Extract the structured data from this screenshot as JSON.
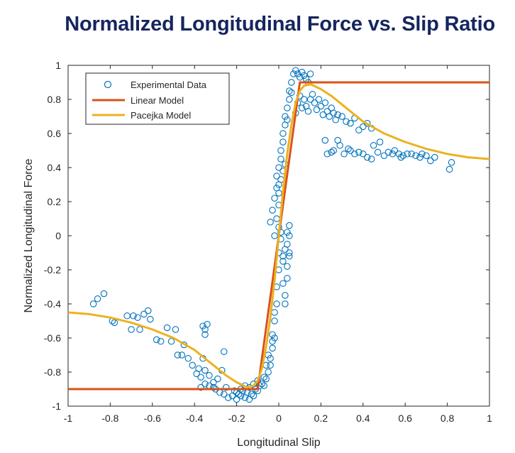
{
  "slide": {
    "title": "Normalized Longitudinal Force vs. Slip Ratio"
  },
  "chart_data": {
    "type": "scatter",
    "title": "",
    "xlabel": "Longitudinal Slip",
    "ylabel": "Normalized Longitudinal Force",
    "xlim": [
      -1,
      1
    ],
    "ylim": [
      -1,
      1
    ],
    "xticks": [
      -1,
      -0.8,
      -0.6,
      -0.4,
      -0.2,
      0,
      0.2,
      0.4,
      0.6,
      0.8,
      1
    ],
    "xtick_labels": [
      "-1",
      "-0.8",
      "-0.6",
      "-0.4",
      "-0.2",
      "0",
      "0.2",
      "0.4",
      "0.6",
      "0.8",
      "1"
    ],
    "yticks": [
      -1,
      -0.8,
      -0.6,
      -0.4,
      -0.2,
      0,
      0.2,
      0.4,
      0.6,
      0.8,
      1
    ],
    "ytick_labels": [
      "-1",
      "-0.8",
      "-0.6",
      "-0.4",
      "-0.2",
      "0",
      "0.2",
      "0.4",
      "0.6",
      "0.8",
      "1"
    ],
    "grid": false,
    "legend_position": "top-left",
    "series": [
      {
        "name": "Experimental Data",
        "kind": "scatter",
        "marker": "open-circle",
        "color": "#0072bd",
        "points": [
          [
            -0.88,
            -0.4
          ],
          [
            -0.86,
            -0.37
          ],
          [
            -0.83,
            -0.34
          ],
          [
            -0.79,
            -0.5
          ],
          [
            -0.78,
            -0.51
          ],
          [
            -0.72,
            -0.47
          ],
          [
            -0.7,
            -0.55
          ],
          [
            -0.69,
            -0.47
          ],
          [
            -0.67,
            -0.48
          ],
          [
            -0.66,
            -0.55
          ],
          [
            -0.64,
            -0.46
          ],
          [
            -0.62,
            -0.44
          ],
          [
            -0.61,
            -0.49
          ],
          [
            -0.58,
            -0.61
          ],
          [
            -0.56,
            -0.62
          ],
          [
            -0.53,
            -0.54
          ],
          [
            -0.51,
            -0.62
          ],
          [
            -0.49,
            -0.55
          ],
          [
            -0.48,
            -0.7
          ],
          [
            -0.46,
            -0.7
          ],
          [
            -0.45,
            -0.64
          ],
          [
            -0.43,
            -0.72
          ],
          [
            -0.41,
            -0.76
          ],
          [
            -0.39,
            -0.81
          ],
          [
            -0.37,
            -0.83
          ],
          [
            -0.36,
            -0.72
          ],
          [
            -0.38,
            -0.78
          ],
          [
            -0.35,
            -0.79
          ],
          [
            -0.33,
            -0.82
          ],
          [
            -0.31,
            -0.86
          ],
          [
            -0.33,
            -0.88
          ],
          [
            -0.35,
            -0.87
          ],
          [
            -0.37,
            -0.89
          ],
          [
            -0.36,
            -0.53
          ],
          [
            -0.35,
            -0.55
          ],
          [
            -0.34,
            -0.52
          ],
          [
            -0.35,
            -0.58
          ],
          [
            -0.26,
            -0.68
          ],
          [
            -0.27,
            -0.79
          ],
          [
            -0.29,
            -0.84
          ],
          [
            -0.3,
            -0.9
          ],
          [
            -0.31,
            -0.89
          ],
          [
            -0.28,
            -0.92
          ],
          [
            -0.26,
            -0.93
          ],
          [
            -0.25,
            -0.89
          ],
          [
            -0.24,
            -0.95
          ],
          [
            -0.22,
            -0.94
          ],
          [
            -0.21,
            -0.91
          ],
          [
            -0.2,
            -0.96
          ],
          [
            -0.19,
            -0.93
          ],
          [
            -0.18,
            -0.94
          ],
          [
            -0.17,
            -0.91
          ],
          [
            -0.16,
            -0.95
          ],
          [
            -0.15,
            -0.92
          ],
          [
            -0.14,
            -0.96
          ],
          [
            -0.13,
            -0.93
          ],
          [
            -0.12,
            -0.94
          ],
          [
            -0.11,
            -0.9
          ],
          [
            -0.1,
            -0.91
          ],
          [
            -0.09,
            -0.88
          ],
          [
            -0.08,
            -0.87
          ],
          [
            -0.07,
            -0.83
          ],
          [
            -0.06,
            -0.84
          ],
          [
            -0.05,
            -0.8
          ],
          [
            -0.05,
            -0.7
          ],
          [
            -0.04,
            -0.72
          ],
          [
            -0.03,
            -0.62
          ],
          [
            -0.03,
            -0.58
          ],
          [
            -0.02,
            -0.5
          ],
          [
            -0.02,
            -0.45
          ],
          [
            -0.01,
            -0.4
          ],
          [
            -0.01,
            -0.3
          ],
          [
            0.0,
            -0.2
          ],
          [
            0.0,
            -0.1
          ],
          [
            0.01,
            -0.02
          ],
          [
            0.02,
            -0.12
          ],
          [
            0.02,
            -0.28
          ],
          [
            0.03,
            -0.35
          ],
          [
            0.03,
            -0.4
          ],
          [
            0.04,
            -0.25
          ],
          [
            0.04,
            -0.05
          ],
          [
            0.05,
            0.0
          ],
          [
            0.05,
            0.06
          ],
          [
            0.05,
            -0.1
          ],
          [
            0.05,
            -0.12
          ],
          [
            -0.02,
            0.0
          ],
          [
            -0.01,
            0.1
          ],
          [
            0.0,
            0.18
          ],
          [
            0.0,
            0.25
          ],
          [
            0.0,
            0.3
          ],
          [
            -0.01,
            0.35
          ],
          [
            0.0,
            0.4
          ],
          [
            0.01,
            0.45
          ],
          [
            0.01,
            0.5
          ],
          [
            0.02,
            0.55
          ],
          [
            0.02,
            0.6
          ],
          [
            0.03,
            0.65
          ],
          [
            0.03,
            0.7
          ],
          [
            0.04,
            0.68
          ],
          [
            0.04,
            0.75
          ],
          [
            0.05,
            0.8
          ],
          [
            0.05,
            0.85
          ],
          [
            0.06,
            0.84
          ],
          [
            0.06,
            0.9
          ],
          [
            0.07,
            0.95
          ],
          [
            0.08,
            0.97
          ],
          [
            0.09,
            0.95
          ],
          [
            0.1,
            0.93
          ],
          [
            0.11,
            0.96
          ],
          [
            0.12,
            0.94
          ],
          [
            0.13,
            0.92
          ],
          [
            0.14,
            0.9
          ],
          [
            0.15,
            0.95
          ],
          [
            0.08,
            0.72
          ],
          [
            0.09,
            0.78
          ],
          [
            0.1,
            0.82
          ],
          [
            0.11,
            0.75
          ],
          [
            0.12,
            0.8
          ],
          [
            0.13,
            0.76
          ],
          [
            0.14,
            0.73
          ],
          [
            0.15,
            0.8
          ],
          [
            0.16,
            0.83
          ],
          [
            0.17,
            0.78
          ],
          [
            0.18,
            0.74
          ],
          [
            0.19,
            0.8
          ],
          [
            0.2,
            0.76
          ],
          [
            0.21,
            0.71
          ],
          [
            0.22,
            0.78
          ],
          [
            0.23,
            0.73
          ],
          [
            0.24,
            0.7
          ],
          [
            0.25,
            0.75
          ],
          [
            0.26,
            0.72
          ],
          [
            0.27,
            0.68
          ],
          [
            0.28,
            0.71
          ],
          [
            0.3,
            0.7
          ],
          [
            0.32,
            0.67
          ],
          [
            0.34,
            0.66
          ],
          [
            0.36,
            0.69
          ],
          [
            0.38,
            0.62
          ],
          [
            0.4,
            0.64
          ],
          [
            0.42,
            0.66
          ],
          [
            0.44,
            0.63
          ],
          [
            0.22,
            0.56
          ],
          [
            0.23,
            0.48
          ],
          [
            0.25,
            0.49
          ],
          [
            0.26,
            0.5
          ],
          [
            0.28,
            0.56
          ],
          [
            0.29,
            0.53
          ],
          [
            0.31,
            0.48
          ],
          [
            0.33,
            0.51
          ],
          [
            0.34,
            0.5
          ],
          [
            0.36,
            0.48
          ],
          [
            0.38,
            0.49
          ],
          [
            0.4,
            0.48
          ],
          [
            0.42,
            0.46
          ],
          [
            0.44,
            0.45
          ],
          [
            0.45,
            0.53
          ],
          [
            0.47,
            0.49
          ],
          [
            0.48,
            0.55
          ],
          [
            0.5,
            0.47
          ],
          [
            0.52,
            0.49
          ],
          [
            0.54,
            0.48
          ],
          [
            0.55,
            0.5
          ],
          [
            0.57,
            0.48
          ],
          [
            0.58,
            0.46
          ],
          [
            0.59,
            0.47
          ],
          [
            0.61,
            0.48
          ],
          [
            0.63,
            0.48
          ],
          [
            0.65,
            0.47
          ],
          [
            0.67,
            0.46
          ],
          [
            0.68,
            0.48
          ],
          [
            0.7,
            0.47
          ],
          [
            0.72,
            0.44
          ],
          [
            0.74,
            0.46
          ],
          [
            0.81,
            0.39
          ],
          [
            0.82,
            0.43
          ],
          [
            -0.04,
            0.08
          ],
          [
            -0.03,
            0.15
          ],
          [
            -0.02,
            0.22
          ],
          [
            -0.01,
            0.28
          ],
          [
            0.01,
            0.33
          ],
          [
            0.02,
            0.38
          ],
          [
            0.03,
            0.42
          ],
          [
            0.0,
            0.05
          ],
          [
            0.01,
            0.02
          ],
          [
            0.04,
            0.02
          ],
          [
            0.03,
            -0.08
          ],
          [
            0.02,
            -0.15
          ],
          [
            0.04,
            -0.18
          ],
          [
            -0.02,
            -0.6
          ],
          [
            -0.03,
            -0.66
          ],
          [
            -0.04,
            -0.76
          ],
          [
            -0.06,
            -0.76
          ],
          [
            -0.07,
            -0.88
          ],
          [
            -0.1,
            -0.85
          ],
          [
            -0.12,
            -0.87
          ],
          [
            -0.14,
            -0.89
          ],
          [
            -0.16,
            -0.88
          ],
          [
            -0.18,
            -0.9
          ],
          [
            -0.2,
            -0.92
          ]
        ]
      },
      {
        "name": "Linear Model",
        "kind": "line",
        "color": "#d95319",
        "points": [
          [
            -1,
            -0.9
          ],
          [
            -0.1,
            -0.9
          ],
          [
            0.1,
            0.9
          ],
          [
            1,
            0.9
          ]
        ]
      },
      {
        "name": "Pacejka Model",
        "kind": "line",
        "color": "#edb120",
        "points": [
          [
            -1,
            -0.45
          ],
          [
            -0.9,
            -0.46
          ],
          [
            -0.8,
            -0.48
          ],
          [
            -0.7,
            -0.51
          ],
          [
            -0.6,
            -0.55
          ],
          [
            -0.5,
            -0.6
          ],
          [
            -0.4,
            -0.67
          ],
          [
            -0.3,
            -0.77
          ],
          [
            -0.25,
            -0.82
          ],
          [
            -0.2,
            -0.86
          ],
          [
            -0.15,
            -0.89
          ],
          [
            -0.12,
            -0.88
          ],
          [
            -0.1,
            -0.85
          ],
          [
            -0.08,
            -0.78
          ],
          [
            -0.06,
            -0.65
          ],
          [
            -0.04,
            -0.48
          ],
          [
            -0.02,
            -0.26
          ],
          [
            0,
            0
          ],
          [
            0.02,
            0.26
          ],
          [
            0.04,
            0.48
          ],
          [
            0.06,
            0.65
          ],
          [
            0.08,
            0.78
          ],
          [
            0.1,
            0.85
          ],
          [
            0.12,
            0.88
          ],
          [
            0.15,
            0.89
          ],
          [
            0.2,
            0.86
          ],
          [
            0.25,
            0.82
          ],
          [
            0.3,
            0.77
          ],
          [
            0.4,
            0.67
          ],
          [
            0.5,
            0.6
          ],
          [
            0.6,
            0.55
          ],
          [
            0.7,
            0.51
          ],
          [
            0.8,
            0.48
          ],
          [
            0.9,
            0.46
          ],
          [
            1,
            0.45
          ]
        ]
      }
    ]
  }
}
